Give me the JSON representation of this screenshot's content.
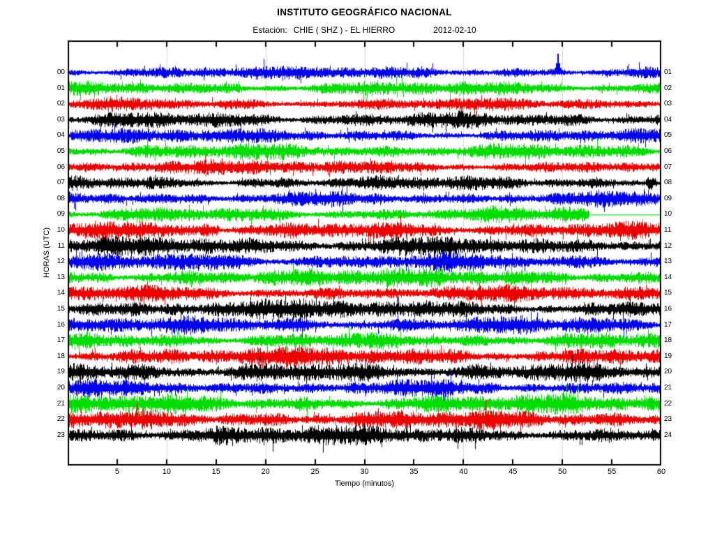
{
  "header": {
    "title": "INSTITUTO GEOGRÁFICO NACIONAL",
    "station_label": "Estación:",
    "station_name": "CHIE ( SHZ ) - EL HIERRO",
    "date": "2012-02-10"
  },
  "axes": {
    "x_label": "Tiempo (minutos)",
    "y_label": "HORAS (UTC)",
    "x_min": 0,
    "x_max": 60,
    "x_ticks": [
      5,
      10,
      15,
      20,
      25,
      30,
      35,
      40,
      45,
      50,
      55,
      60
    ],
    "grid_x": [
      10,
      20,
      30,
      40,
      50
    ]
  },
  "colors": {
    "blue": "#0000ee",
    "green": "#00dd00",
    "red": "#ee0000",
    "black": "#000000",
    "grid": "#d8d8d8",
    "frame": "#000000"
  },
  "chart_data": {
    "type": "line",
    "subtype": "seismogram-helicorder",
    "station": "CHIE",
    "channel": "SHZ",
    "location": "EL HIERRO",
    "date": "2012-02-10",
    "minutes_per_line": 60,
    "color_cycle": [
      "blue",
      "green",
      "red",
      "black"
    ],
    "rows": [
      {
        "hour": "00",
        "end_hour": "01",
        "color": "blue",
        "amp": 8,
        "events": [
          {
            "type": "spike",
            "t": 49.55,
            "h": 27
          }
        ]
      },
      {
        "hour": "01",
        "end_hour": "02",
        "color": "green",
        "amp": 9,
        "events": []
      },
      {
        "hour": "02",
        "end_hour": "03",
        "color": "red",
        "amp": 8,
        "events": []
      },
      {
        "hour": "03",
        "end_hour": "04",
        "color": "black",
        "amp": 10,
        "events": []
      },
      {
        "hour": "04",
        "end_hour": "05",
        "color": "blue",
        "amp": 9,
        "events": []
      },
      {
        "hour": "05",
        "end_hour": "06",
        "color": "green",
        "amp": 10,
        "events": []
      },
      {
        "hour": "06",
        "end_hour": "07",
        "color": "red",
        "amp": 9,
        "events": []
      },
      {
        "hour": "07",
        "end_hour": "08",
        "color": "black",
        "amp": 9,
        "events": [
          {
            "type": "burst",
            "from": 58.2,
            "to": 59.7,
            "amp": 14
          }
        ]
      },
      {
        "hour": "08",
        "end_hour": "09",
        "color": "blue",
        "amp": 9,
        "events": [
          {
            "type": "burst",
            "from": 53.3,
            "to": 58.7,
            "amp": 11
          },
          {
            "type": "burst",
            "from": 58.9,
            "to": 59.7,
            "amp": 14
          }
        ]
      },
      {
        "hour": "09",
        "end_hour": "10",
        "color": "green",
        "amp": 9,
        "events": [
          {
            "type": "burst",
            "from": 42.5,
            "to": 47.0,
            "amp": 11
          },
          {
            "type": "burst",
            "from": 48.8,
            "to": 52.6,
            "amp": 13
          },
          {
            "type": "flat",
            "from": 52.7,
            "to": 60
          }
        ]
      },
      {
        "hour": "10",
        "end_hour": "11",
        "color": "red",
        "amp": 10.5,
        "events": [
          {
            "type": "burst",
            "from": 2.3,
            "to": 8.0,
            "amp": 14
          },
          {
            "type": "burst",
            "from": 13.0,
            "to": 15.5,
            "amp": 13
          }
        ]
      },
      {
        "hour": "11",
        "end_hour": "12",
        "color": "black",
        "amp": 12,
        "events": [
          {
            "type": "burst",
            "from": 3.0,
            "to": 11.0,
            "amp": 13.5
          }
        ]
      },
      {
        "hour": "12",
        "end_hour": "13",
        "color": "blue",
        "amp": 11,
        "events": []
      },
      {
        "hour": "13",
        "end_hour": "14",
        "color": "green",
        "amp": 11,
        "events": []
      },
      {
        "hour": "14",
        "end_hour": "15",
        "color": "red",
        "amp": 10,
        "events": []
      },
      {
        "hour": "15",
        "end_hour": "16",
        "color": "black",
        "amp": 12,
        "events": []
      },
      {
        "hour": "16",
        "end_hour": "17",
        "color": "blue",
        "amp": 11,
        "events": []
      },
      {
        "hour": "17",
        "end_hour": "18",
        "color": "green",
        "amp": 10,
        "events": []
      },
      {
        "hour": "18",
        "end_hour": "19",
        "color": "red",
        "amp": 12,
        "events": []
      },
      {
        "hour": "19",
        "end_hour": "20",
        "color": "black",
        "amp": 12,
        "events": []
      },
      {
        "hour": "20",
        "end_hour": "21",
        "color": "blue",
        "amp": 10,
        "events": []
      },
      {
        "hour": "21",
        "end_hour": "22",
        "color": "green",
        "amp": 12,
        "events": []
      },
      {
        "hour": "22",
        "end_hour": "23",
        "color": "red",
        "amp": 12,
        "events": []
      },
      {
        "hour": "23",
        "end_hour": "24",
        "color": "black",
        "amp": 12,
        "events": [
          {
            "type": "burst",
            "from": 26.0,
            "to": 30.0,
            "amp": 13.5
          }
        ]
      }
    ]
  }
}
